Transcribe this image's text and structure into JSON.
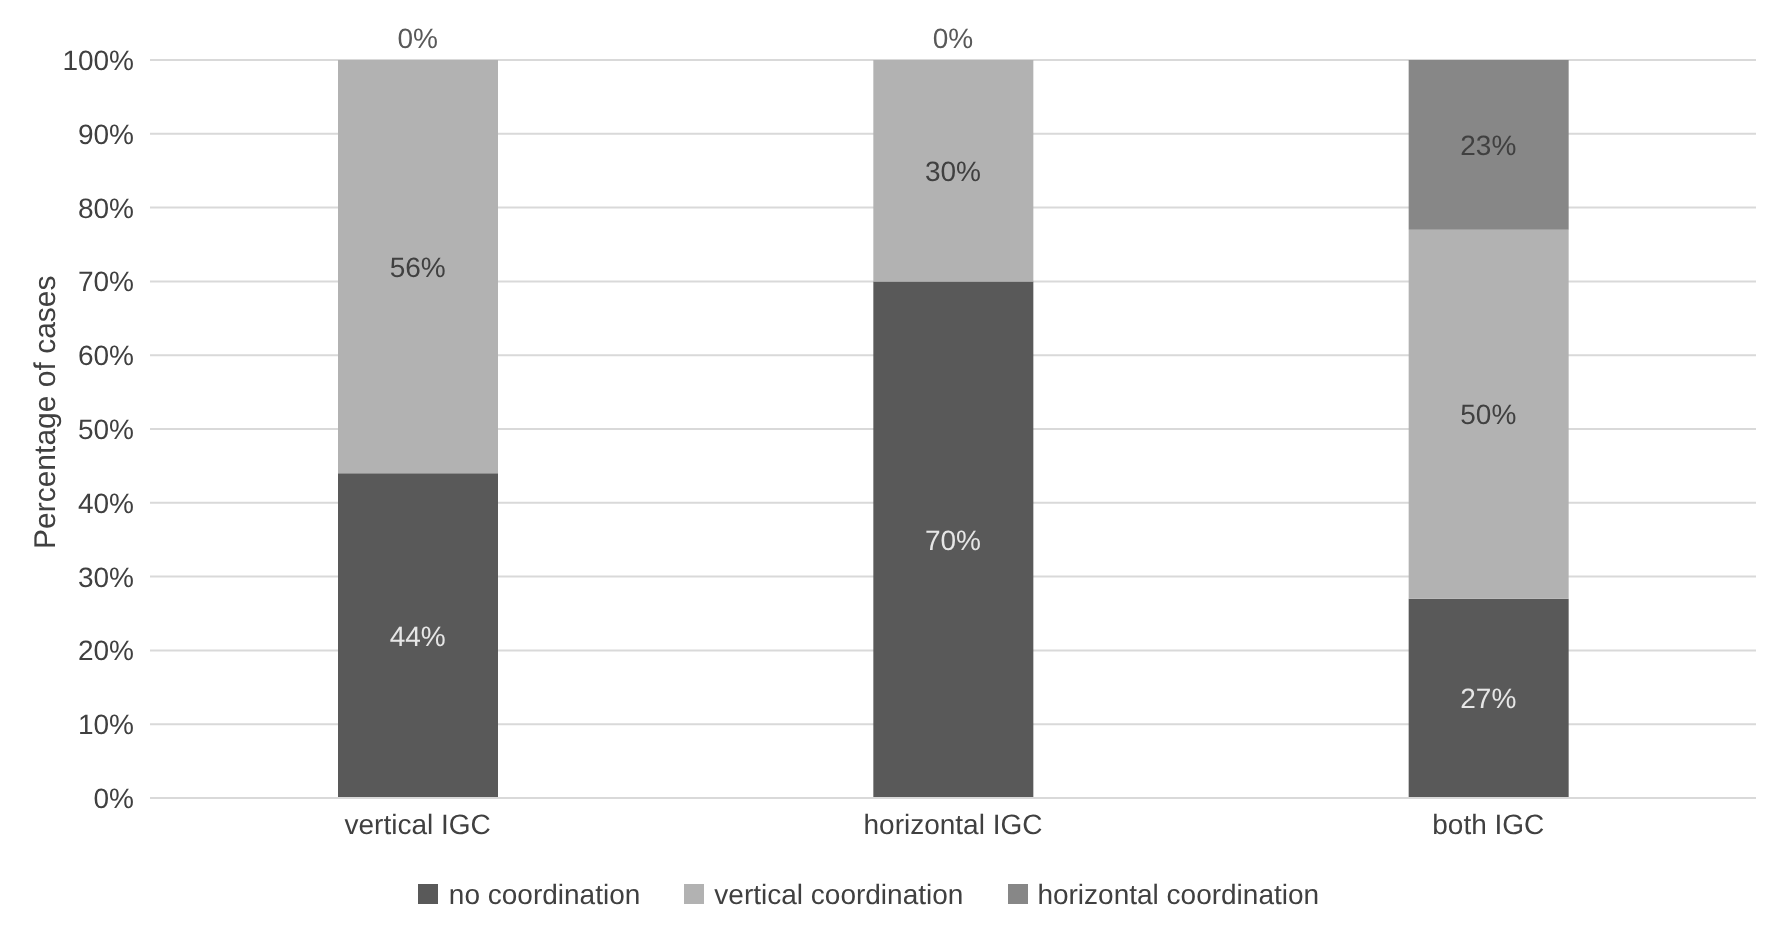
{
  "chart_data": {
    "type": "bar",
    "stacked": true,
    "ylabel": "Percentage of cases",
    "categories": [
      "vertical IGC",
      "horizontal IGC",
      "both IGC"
    ],
    "series": [
      {
        "name": "no coordination",
        "color": "#595959",
        "values": [
          44,
          70,
          27
        ],
        "value_labels": [
          "44%",
          "70%",
          "27%"
        ]
      },
      {
        "name": "vertical coordination",
        "color": "#b2b2b2",
        "values": [
          56,
          30,
          50
        ],
        "value_labels": [
          "56%",
          "30%",
          "50%"
        ]
      },
      {
        "name": "horizontal coordination",
        "color": "#878787",
        "values": [
          0,
          0,
          23
        ],
        "value_labels": [
          "0%",
          "0%",
          "23%"
        ]
      }
    ],
    "ylim": [
      0,
      100
    ],
    "yticks": [
      {
        "value": 0,
        "label": "0%"
      },
      {
        "value": 10,
        "label": "10%"
      },
      {
        "value": 20,
        "label": "20%"
      },
      {
        "value": 30,
        "label": "30%"
      },
      {
        "value": 40,
        "label": "40%"
      },
      {
        "value": 50,
        "label": "50%"
      },
      {
        "value": 60,
        "label": "60%"
      },
      {
        "value": 70,
        "label": "70%"
      },
      {
        "value": 80,
        "label": "80%"
      },
      {
        "value": 90,
        "label": "90%"
      },
      {
        "value": 100,
        "label": "100%"
      }
    ],
    "grid": "y",
    "legend": "bottom"
  }
}
